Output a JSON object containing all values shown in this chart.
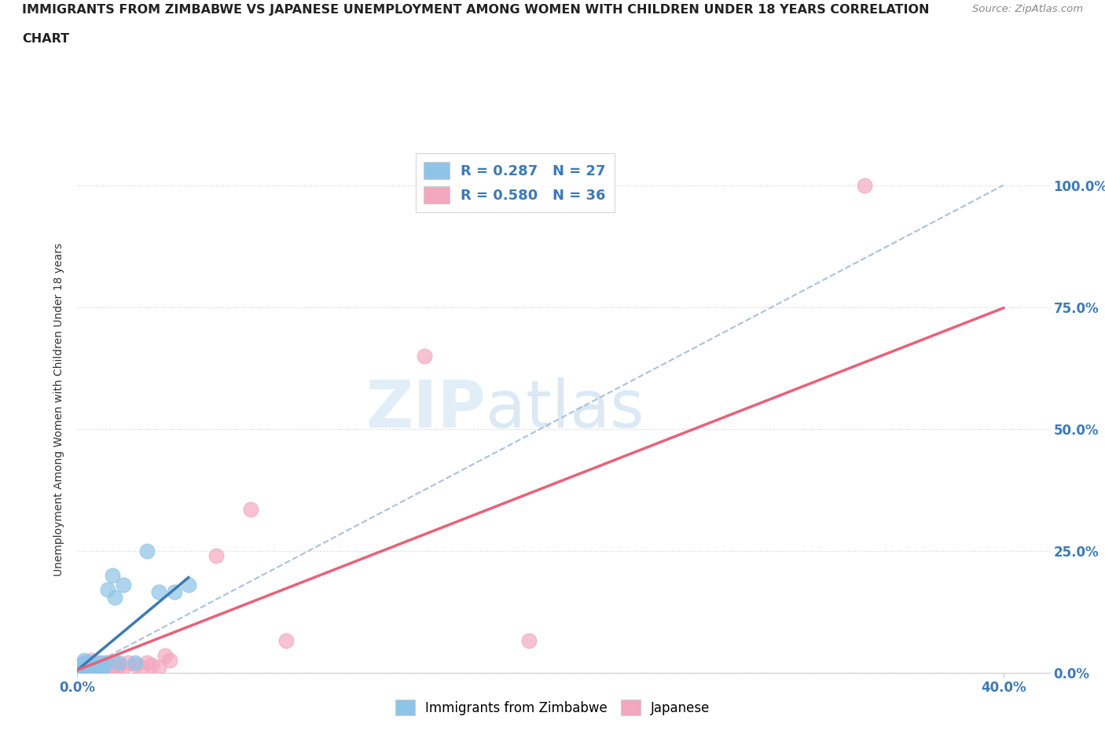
{
  "title_line1": "IMMIGRANTS FROM ZIMBABWE VS JAPANESE UNEMPLOYMENT AMONG WOMEN WITH CHILDREN UNDER 18 YEARS CORRELATION",
  "title_line2": "CHART",
  "source": "Source: ZipAtlas.com",
  "ylabel": "Unemployment Among Women with Children Under 18 years",
  "xlim": [
    0.0,
    0.42
  ],
  "ylim": [
    0.0,
    1.08
  ],
  "ytick_labels": [
    "0.0%",
    "25.0%",
    "50.0%",
    "75.0%",
    "100.0%"
  ],
  "ytick_vals": [
    0.0,
    0.25,
    0.5,
    0.75,
    1.0
  ],
  "xtick_labels": [
    "0.0%",
    "40.0%"
  ],
  "xtick_vals": [
    0.0,
    0.4
  ],
  "legend1_label": "R = 0.287   N = 27",
  "legend2_label": "R = 0.580   N = 36",
  "color_blue": "#8ec4e8",
  "color_pink": "#f4a8c0",
  "color_blue_line": "#3d7ab5",
  "color_pink_line": "#e8617a",
  "color_dash_line": "#a0bcd8",
  "watermark_zip": "ZIP",
  "watermark_atlas": "atlas",
  "blue_scatter_x": [
    0.001,
    0.002,
    0.002,
    0.003,
    0.003,
    0.004,
    0.004,
    0.005,
    0.006,
    0.006,
    0.007,
    0.008,
    0.009,
    0.01,
    0.01,
    0.011,
    0.012,
    0.013,
    0.015,
    0.016,
    0.018,
    0.02,
    0.025,
    0.03,
    0.035,
    0.042,
    0.048
  ],
  "blue_scatter_y": [
    0.005,
    0.005,
    0.015,
    0.005,
    0.025,
    0.01,
    0.02,
    0.015,
    0.005,
    0.02,
    0.01,
    0.015,
    0.01,
    0.005,
    0.02,
    0.01,
    0.02,
    0.17,
    0.2,
    0.155,
    0.02,
    0.18,
    0.02,
    0.25,
    0.165,
    0.165,
    0.18
  ],
  "pink_scatter_x": [
    0.001,
    0.002,
    0.003,
    0.003,
    0.004,
    0.005,
    0.005,
    0.006,
    0.006,
    0.007,
    0.008,
    0.009,
    0.01,
    0.011,
    0.012,
    0.013,
    0.014,
    0.015,
    0.016,
    0.017,
    0.018,
    0.02,
    0.022,
    0.025,
    0.028,
    0.03,
    0.032,
    0.035,
    0.038,
    0.04,
    0.06,
    0.075,
    0.09,
    0.15,
    0.195,
    0.34
  ],
  "pink_scatter_y": [
    0.005,
    0.01,
    0.005,
    0.02,
    0.01,
    0.005,
    0.02,
    0.01,
    0.025,
    0.015,
    0.01,
    0.02,
    0.015,
    0.01,
    0.005,
    0.02,
    0.015,
    0.01,
    0.02,
    0.01,
    0.015,
    0.01,
    0.02,
    0.015,
    0.01,
    0.02,
    0.015,
    0.01,
    0.035,
    0.025,
    0.24,
    0.335,
    0.065,
    0.65,
    0.065,
    1.0
  ],
  "blue_line_x": [
    0.0,
    0.048
  ],
  "blue_line_y": [
    0.005,
    0.195
  ],
  "pink_line_x": [
    0.0,
    0.4
  ],
  "pink_line_y": [
    0.005,
    0.748
  ],
  "dash_line_x": [
    0.0,
    0.4
  ],
  "dash_line_y": [
    0.0,
    1.0
  ]
}
